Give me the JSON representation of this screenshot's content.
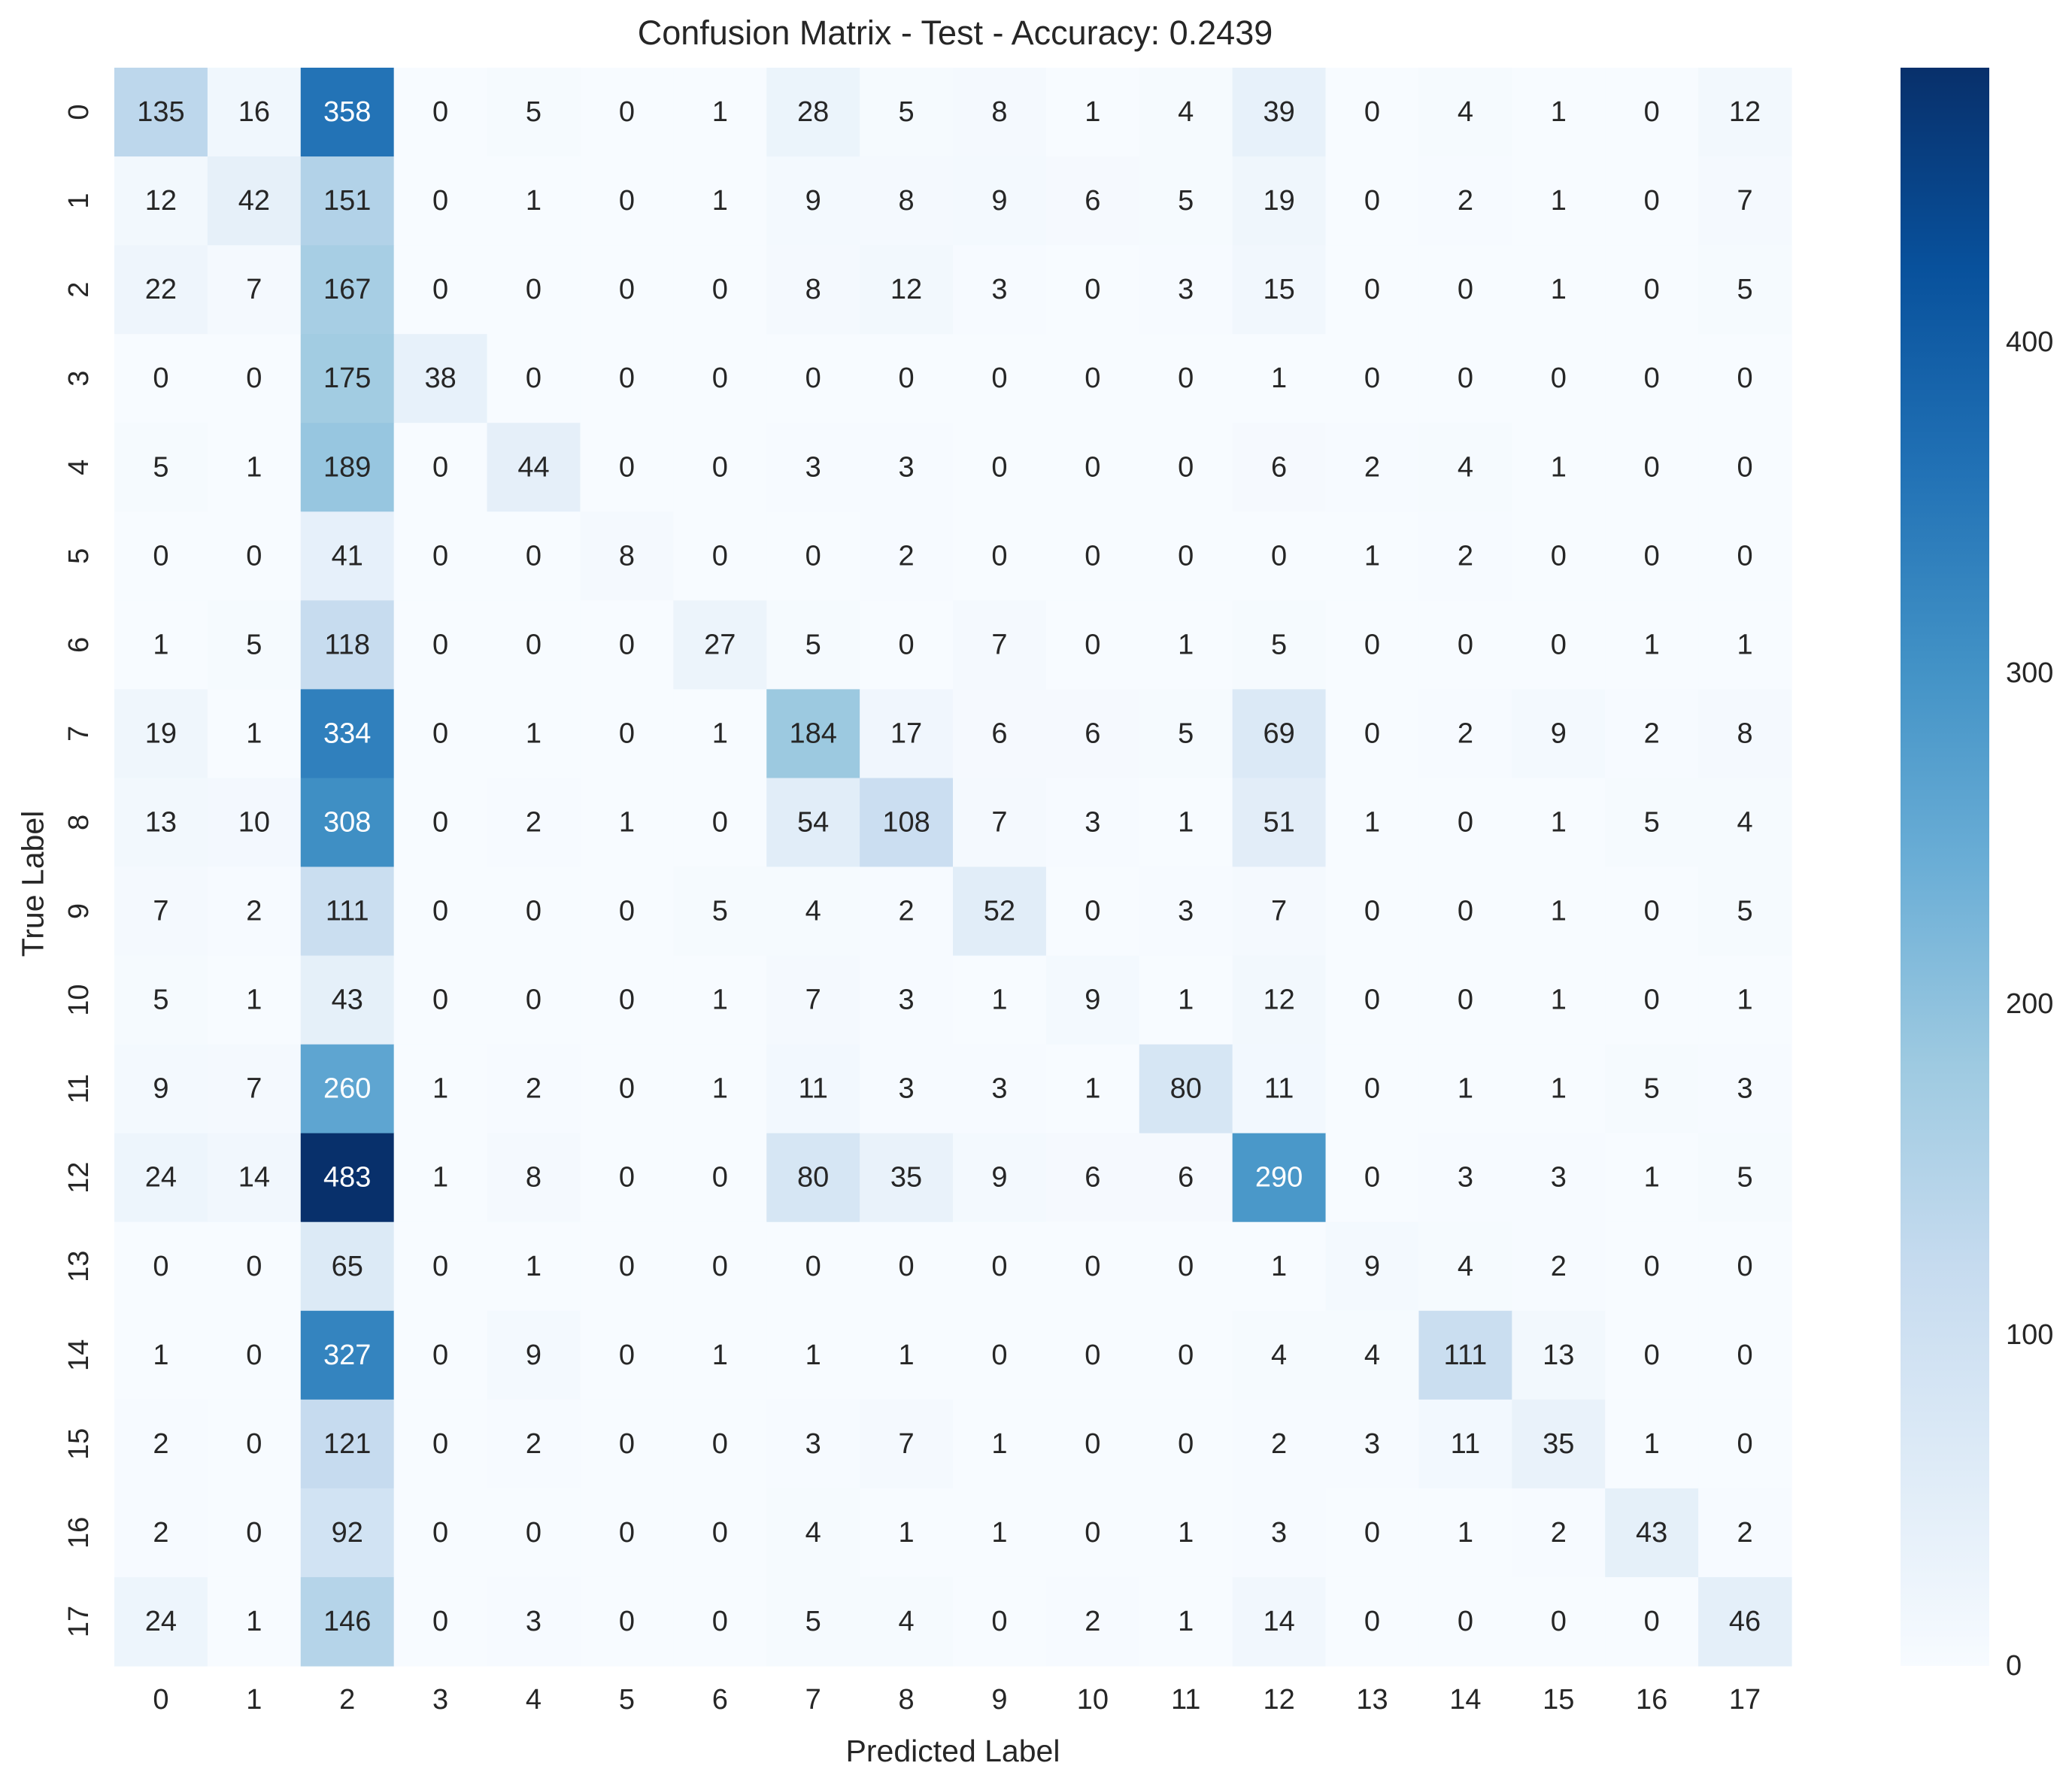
{
  "chart_data": {
    "type": "heatmap",
    "title": "Confusion Matrix - Test - Accuracy: 0.2439",
    "xlabel": "Predicted Label",
    "ylabel": "True Label",
    "x_categories": [
      "0",
      "1",
      "2",
      "3",
      "4",
      "5",
      "6",
      "7",
      "8",
      "9",
      "10",
      "11",
      "12",
      "13",
      "14",
      "15",
      "16",
      "17"
    ],
    "y_categories": [
      "0",
      "1",
      "2",
      "3",
      "4",
      "5",
      "6",
      "7",
      "8",
      "9",
      "10",
      "11",
      "12",
      "13",
      "14",
      "15",
      "16",
      "17"
    ],
    "matrix": [
      [
        135,
        16,
        358,
        0,
        5,
        0,
        1,
        28,
        5,
        8,
        1,
        4,
        39,
        0,
        4,
        1,
        0,
        12
      ],
      [
        12,
        42,
        151,
        0,
        1,
        0,
        1,
        9,
        8,
        9,
        6,
        5,
        19,
        0,
        2,
        1,
        0,
        7
      ],
      [
        22,
        7,
        167,
        0,
        0,
        0,
        0,
        8,
        12,
        3,
        0,
        3,
        15,
        0,
        0,
        1,
        0,
        5
      ],
      [
        0,
        0,
        175,
        38,
        0,
        0,
        0,
        0,
        0,
        0,
        0,
        0,
        1,
        0,
        0,
        0,
        0,
        0
      ],
      [
        5,
        1,
        189,
        0,
        44,
        0,
        0,
        3,
        3,
        0,
        0,
        0,
        6,
        2,
        4,
        1,
        0,
        0
      ],
      [
        0,
        0,
        41,
        0,
        0,
        8,
        0,
        0,
        2,
        0,
        0,
        0,
        0,
        1,
        2,
        0,
        0,
        0
      ],
      [
        1,
        5,
        118,
        0,
        0,
        0,
        27,
        5,
        0,
        7,
        0,
        1,
        5,
        0,
        0,
        0,
        1,
        1
      ],
      [
        19,
        1,
        334,
        0,
        1,
        0,
        1,
        184,
        17,
        6,
        6,
        5,
        69,
        0,
        2,
        9,
        2,
        8
      ],
      [
        13,
        10,
        308,
        0,
        2,
        1,
        0,
        54,
        108,
        7,
        3,
        1,
        51,
        1,
        0,
        1,
        5,
        4
      ],
      [
        7,
        2,
        111,
        0,
        0,
        0,
        5,
        4,
        2,
        52,
        0,
        3,
        7,
        0,
        0,
        1,
        0,
        5
      ],
      [
        5,
        1,
        43,
        0,
        0,
        0,
        1,
        7,
        3,
        1,
        9,
        1,
        12,
        0,
        0,
        1,
        0,
        1
      ],
      [
        9,
        7,
        260,
        1,
        2,
        0,
        1,
        11,
        3,
        3,
        1,
        80,
        11,
        0,
        1,
        1,
        5,
        3
      ],
      [
        24,
        14,
        483,
        1,
        8,
        0,
        0,
        80,
        35,
        9,
        6,
        6,
        290,
        0,
        3,
        3,
        1,
        5
      ],
      [
        0,
        0,
        65,
        0,
        1,
        0,
        0,
        0,
        0,
        0,
        0,
        0,
        1,
        9,
        4,
        2,
        0,
        0
      ],
      [
        1,
        0,
        327,
        0,
        9,
        0,
        1,
        1,
        1,
        0,
        0,
        0,
        4,
        4,
        111,
        13,
        0,
        0
      ],
      [
        2,
        0,
        121,
        0,
        2,
        0,
        0,
        3,
        7,
        1,
        0,
        0,
        2,
        3,
        11,
        35,
        1,
        0
      ],
      [
        2,
        0,
        92,
        0,
        0,
        0,
        0,
        4,
        1,
        1,
        0,
        1,
        3,
        0,
        1,
        2,
        43,
        2
      ],
      [
        24,
        1,
        146,
        0,
        3,
        0,
        0,
        5,
        4,
        0,
        2,
        1,
        14,
        0,
        0,
        0,
        0,
        46
      ]
    ],
    "colormap": "Blues",
    "colormap_stops": [
      "#f7fbff",
      "#deebf7",
      "#c6dbef",
      "#9ecae1",
      "#6baed6",
      "#4292c6",
      "#2171b5",
      "#08519c",
      "#08306b"
    ],
    "value_range": [
      0,
      483
    ],
    "colorbar_ticks": [
      0,
      100,
      200,
      300,
      400
    ],
    "grid": false,
    "annotated": true
  }
}
